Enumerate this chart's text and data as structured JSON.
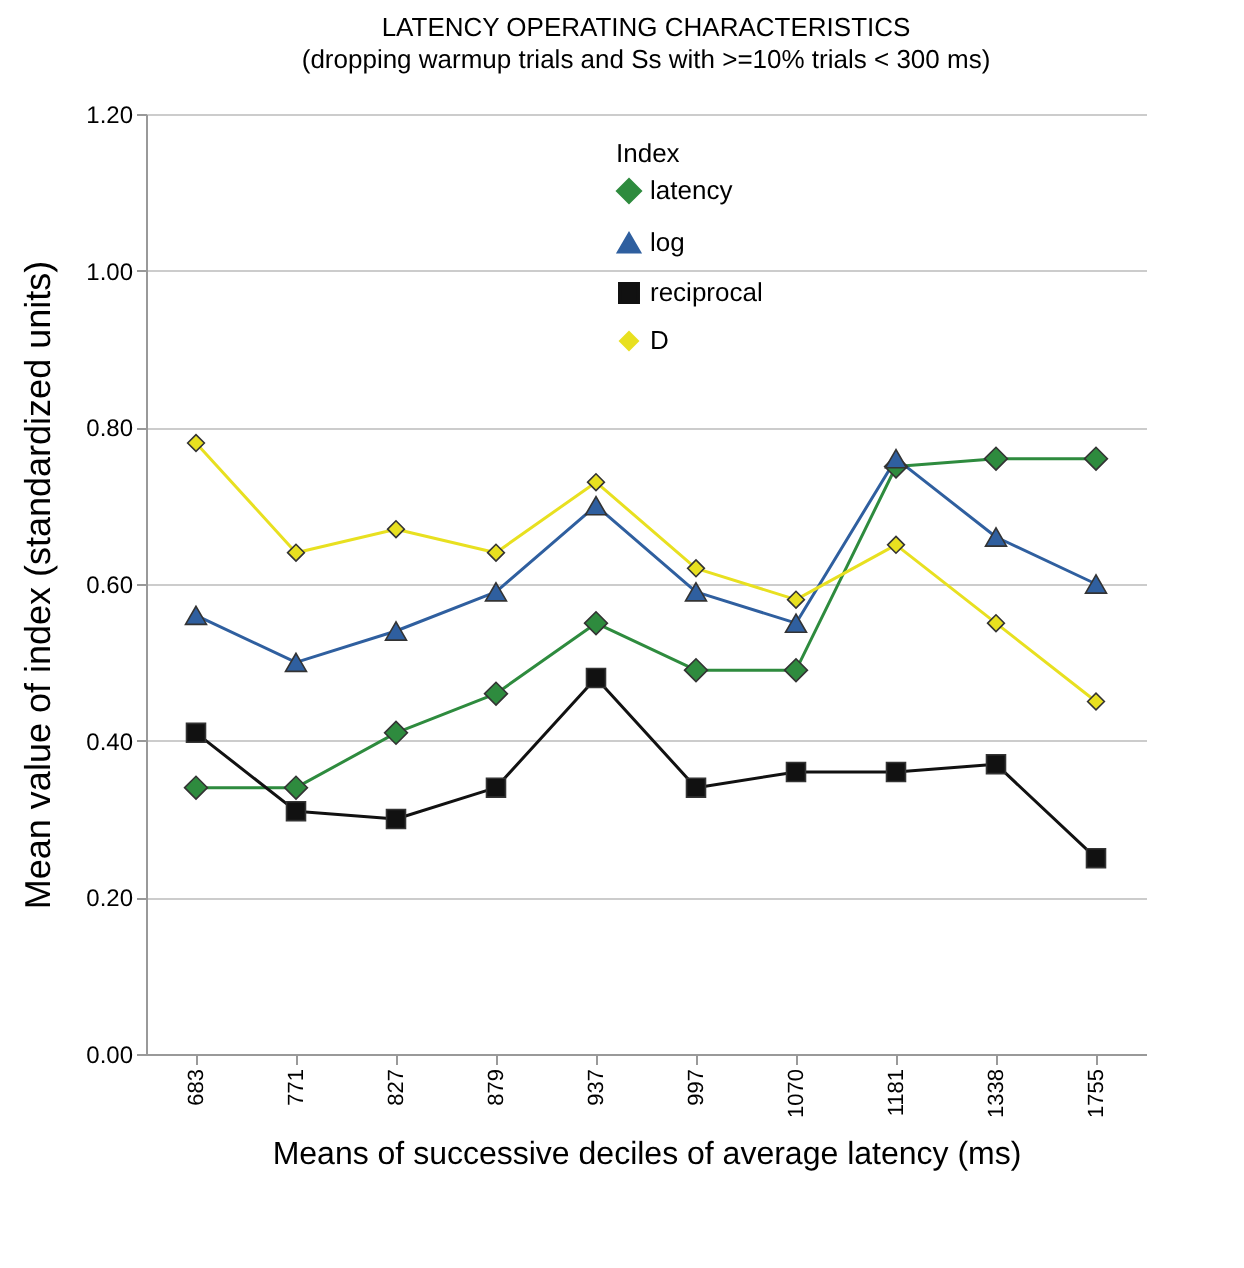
{
  "chart_data": {
    "type": "line",
    "title": "LATENCY OPERATING CHARACTERISTICS",
    "subtitle": "(dropping warmup trials and Ss with >=10% trials < 300 ms)",
    "xlabel": "Means of successive deciles of average latency (ms)",
    "ylabel": "Mean value of index (standardized units)",
    "legend_title": "Index",
    "legend": "top",
    "grid": "y",
    "categories": [
      "683",
      "771",
      "827",
      "879",
      "937",
      "997",
      "1070",
      "1181",
      "1338",
      "1755"
    ],
    "ylim": [
      0,
      1.2
    ],
    "yticks": [
      {
        "value": 0,
        "label": "0.00"
      },
      {
        "value": 0.2,
        "label": "0.20"
      },
      {
        "value": 0.4,
        "label": "0.40"
      },
      {
        "value": 0.6,
        "label": "0.60"
      },
      {
        "value": 0.8,
        "label": "0.80"
      },
      {
        "value": 1.0,
        "label": "1.00"
      },
      {
        "value": 1.2,
        "label": "1.20"
      }
    ],
    "series": [
      {
        "name": "latency",
        "color": "#2e8b3e",
        "marker": "diamond",
        "values": [
          0.34,
          0.34,
          0.41,
          0.46,
          0.55,
          0.49,
          0.49,
          0.75,
          0.76,
          0.76
        ]
      },
      {
        "name": "log",
        "color": "#2f5f9f",
        "marker": "triangle",
        "values": [
          0.56,
          0.5,
          0.54,
          0.59,
          0.7,
          0.59,
          0.55,
          0.76,
          0.66,
          0.6
        ]
      },
      {
        "name": "reciprocal",
        "color": "#111111",
        "marker": "square",
        "values": [
          0.41,
          0.31,
          0.3,
          0.34,
          0.48,
          0.34,
          0.36,
          0.36,
          0.37,
          0.25
        ]
      },
      {
        "name": "D",
        "color": "#e8e020",
        "marker": "diamond",
        "values": [
          0.78,
          0.64,
          0.67,
          0.64,
          0.73,
          0.62,
          0.58,
          0.65,
          0.55,
          0.45
        ]
      }
    ]
  }
}
